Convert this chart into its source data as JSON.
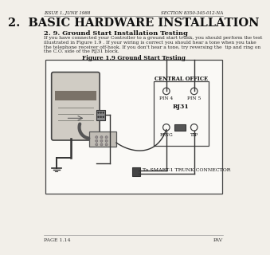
{
  "bg_color": "#f2efe9",
  "header_left": "ISSUE 1, JUNE 1988",
  "header_right": "SECTION 8350-345-012-NA",
  "title": "2.  BASIC HARDWARE INSTALLATION",
  "section_title": "2. 9. Ground Start Installation Testing",
  "body_line1": "If you have connected your Controller to a ground start trunk, you should perform the test",
  "body_line2": "illustrated in Figure 1.9 . If your wiring is correct you should hear a tone when you take",
  "body_line3": "the telephone receiver off-hook. If you don't hear a tone, try reversing the  tip and ring on",
  "body_line4": "the C.O. side of the RJ31 block.",
  "figure_title": "Figure 1.9 Ground Start Testing",
  "footer_left": "PAGE 1.14",
  "footer_right": "PAV",
  "diagram_bg": "#faf9f6",
  "diagram_border": "#444444",
  "central_office_label": "CENTRAL OFFICE",
  "rj31_label": "RJ31",
  "pin4_label": "PIN 4",
  "pin5_label": "PIN 5",
  "ring_label": "RING",
  "tip_label": "TIP",
  "trunk_label": "To SMART-1 TRUNK CONNECTOR",
  "wire_color": "#333333",
  "box_color": "#e8e4dc",
  "controller_band_color": "#7a7268",
  "controller_light_color": "#d0ccc4"
}
